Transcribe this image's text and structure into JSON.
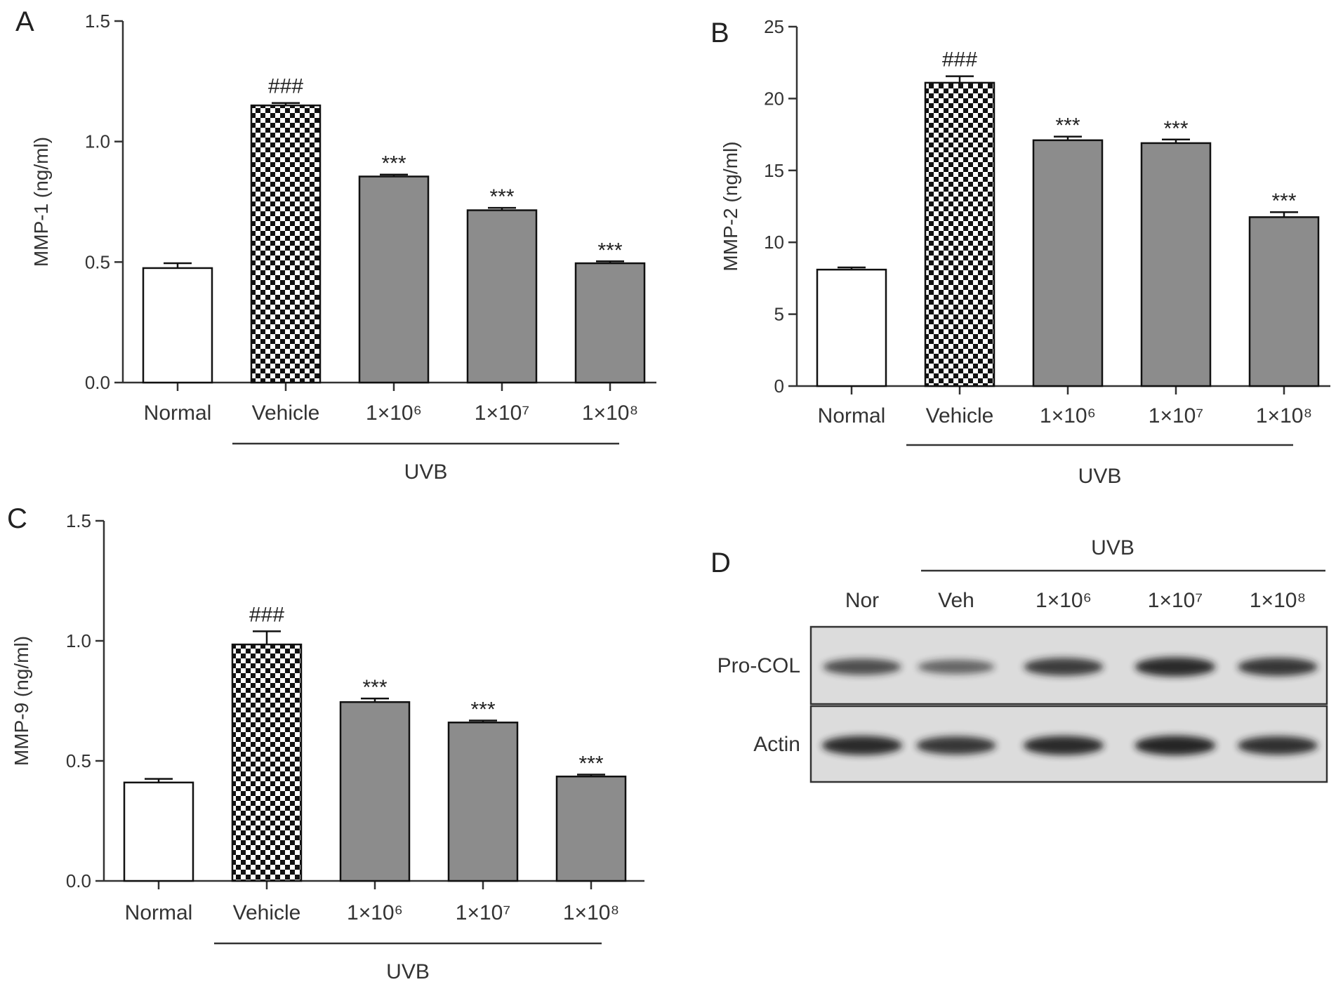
{
  "colors": {
    "normal_fill": "#ffffff",
    "uvb_fill": "#8c8c8c",
    "checker_dark": "#111111",
    "axis": "#333333",
    "blot_bg": "#dcdcdc",
    "band": "#1a1a1a"
  },
  "chart_data": [
    {
      "panel": "A",
      "type": "bar",
      "categories": [
        "Normal",
        "Vehicle",
        "1×10⁶",
        "1×10⁷",
        "1×10⁸"
      ],
      "values": [
        0.475,
        1.15,
        0.855,
        0.715,
        0.495
      ],
      "errors": [
        0.02,
        0.01,
        0.008,
        0.01,
        0.008
      ],
      "fills": [
        "white",
        "checker",
        "gray",
        "gray",
        "gray"
      ],
      "annotations": [
        "",
        "###",
        "***",
        "***",
        "***"
      ],
      "ylabel": "MMP-1 (ng/ml)",
      "ylim": [
        0,
        1.5
      ],
      "yticks": [
        "0.0",
        "0.5",
        "1.0",
        "1.5"
      ],
      "group_label": "UVB",
      "grid": false
    },
    {
      "panel": "B",
      "type": "bar",
      "categories": [
        "Normal",
        "Vehicle",
        "1×10⁶",
        "1×10⁷",
        "1×10⁸"
      ],
      "values": [
        8.1,
        21.1,
        17.1,
        16.9,
        11.75
      ],
      "errors": [
        0.15,
        0.45,
        0.25,
        0.25,
        0.35
      ],
      "fills": [
        "white",
        "checker",
        "gray",
        "gray",
        "gray"
      ],
      "annotations": [
        "",
        "###",
        "***",
        "***",
        "***"
      ],
      "ylabel": "MMP-2 (ng/ml)",
      "ylim": [
        0,
        25
      ],
      "yticks": [
        "0",
        "5",
        "10",
        "15",
        "20",
        "25"
      ],
      "group_label": "UVB",
      "grid": false
    },
    {
      "panel": "C",
      "type": "bar",
      "categories": [
        "Normal",
        "Vehicle",
        "1×10⁶",
        "1×10⁷",
        "1×10⁸"
      ],
      "values": [
        0.41,
        0.985,
        0.745,
        0.66,
        0.435
      ],
      "errors": [
        0.015,
        0.055,
        0.015,
        0.008,
        0.008
      ],
      "fills": [
        "white",
        "checker",
        "gray",
        "gray",
        "gray"
      ],
      "annotations": [
        "",
        "###",
        "***",
        "***",
        "***"
      ],
      "ylabel": "MMP-9 (ng/ml)",
      "ylim": [
        0,
        1.5
      ],
      "yticks": [
        "0.0",
        "0.5",
        "1.0",
        "1.5"
      ],
      "group_label": "UVB",
      "grid": false
    }
  ],
  "western_blot": {
    "panel": "D",
    "group_label": "UVB",
    "lanes": [
      "Nor",
      "Veh",
      "1×10⁶",
      "1×10⁷",
      "1×10⁸"
    ],
    "rows": [
      {
        "label": "Pro-COL",
        "band_intensity": [
          0.65,
          0.45,
          0.8,
          0.95,
          0.85
        ]
      },
      {
        "label": "Actin",
        "band_intensity": [
          0.95,
          0.85,
          0.95,
          1.0,
          0.9
        ]
      }
    ]
  }
}
